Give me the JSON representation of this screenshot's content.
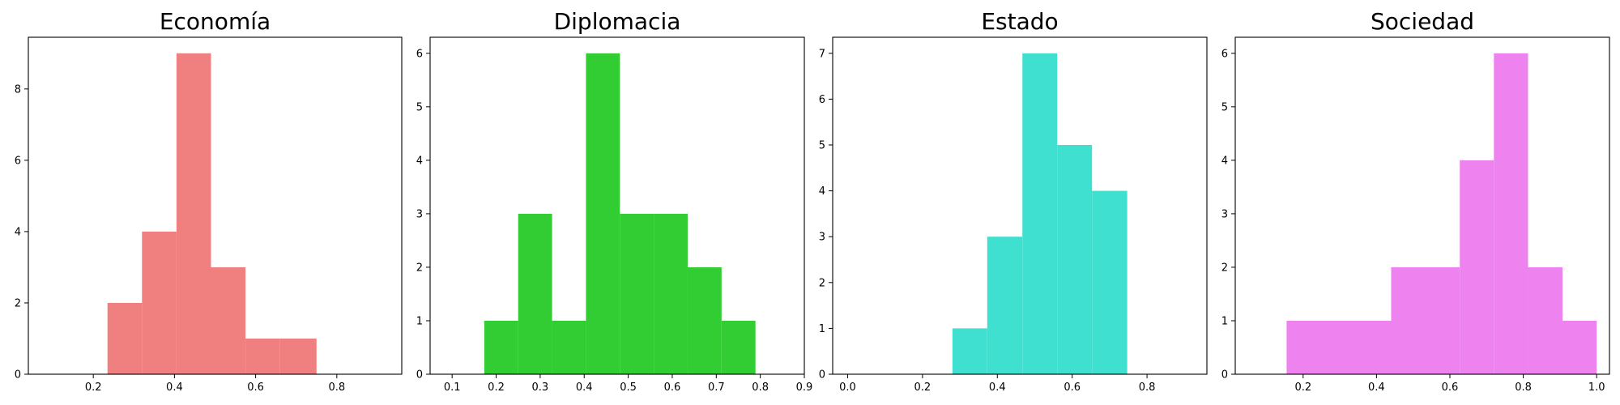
{
  "chart_data": [
    {
      "type": "histogram",
      "title": "Economía",
      "color": "#F08080",
      "xlim": [
        0.04,
        0.96
      ],
      "ylim": [
        0,
        9.45
      ],
      "xticks": [
        "0.2",
        "0.4",
        "0.6",
        "0.8"
      ],
      "yticks": [
        "0",
        "2",
        "4",
        "6",
        "8"
      ],
      "bins": [
        {
          "x0": 0.235,
          "x1": 0.32,
          "count": 2
        },
        {
          "x0": 0.32,
          "x1": 0.405,
          "count": 4
        },
        {
          "x0": 0.405,
          "x1": 0.49,
          "count": 9
        },
        {
          "x0": 0.49,
          "x1": 0.575,
          "count": 3
        },
        {
          "x0": 0.575,
          "x1": 0.66,
          "count": 1
        },
        {
          "x0": 0.66,
          "x1": 0.75,
          "count": 1
        }
      ]
    },
    {
      "type": "histogram",
      "title": "Diplomacia",
      "color": "#32CD32",
      "xlim": [
        0.05,
        0.9
      ],
      "ylim": [
        0,
        6.3
      ],
      "xticks": [
        "0.1",
        "0.2",
        "0.3",
        "0.4",
        "0.5",
        "0.6",
        "0.7",
        "0.8",
        "0.9"
      ],
      "yticks": [
        "0",
        "1",
        "2",
        "3",
        "4",
        "5",
        "6"
      ],
      "bins": [
        {
          "x0": 0.173,
          "x1": 0.25,
          "count": 1
        },
        {
          "x0": 0.25,
          "x1": 0.327,
          "count": 3
        },
        {
          "x0": 0.327,
          "x1": 0.404,
          "count": 1
        },
        {
          "x0": 0.404,
          "x1": 0.481,
          "count": 6
        },
        {
          "x0": 0.481,
          "x1": 0.558,
          "count": 3
        },
        {
          "x0": 0.558,
          "x1": 0.635,
          "count": 3
        },
        {
          "x0": 0.635,
          "x1": 0.712,
          "count": 2
        },
        {
          "x0": 0.712,
          "x1": 0.789,
          "count": 1
        }
      ]
    },
    {
      "type": "histogram",
      "title": "Estado",
      "color": "#40E0D0",
      "xlim": [
        -0.04,
        0.96
      ],
      "ylim": [
        0,
        7.35
      ],
      "xticks": [
        "0.0",
        "0.2",
        "0.4",
        "0.6",
        "0.8"
      ],
      "yticks": [
        "0",
        "1",
        "2",
        "3",
        "4",
        "5",
        "6",
        "7"
      ],
      "bins": [
        {
          "x0": 0.28,
          "x1": 0.373,
          "count": 1
        },
        {
          "x0": 0.373,
          "x1": 0.467,
          "count": 3
        },
        {
          "x0": 0.467,
          "x1": 0.56,
          "count": 7
        },
        {
          "x0": 0.56,
          "x1": 0.653,
          "count": 5
        },
        {
          "x0": 0.653,
          "x1": 0.747,
          "count": 4
        }
      ]
    },
    {
      "type": "histogram",
      "title": "Sociedad",
      "color": "#EE82EE",
      "xlim": [
        0.015,
        1.035
      ],
      "ylim": [
        0,
        6.3
      ],
      "xticks": [
        "0.2",
        "0.4",
        "0.6",
        "0.8",
        "1.0"
      ],
      "yticks": [
        "0",
        "1",
        "2",
        "3",
        "4",
        "5",
        "6"
      ],
      "bins": [
        {
          "x0": 0.155,
          "x1": 0.44,
          "count": 1
        },
        {
          "x0": 0.44,
          "x1": 0.627,
          "count": 2
        },
        {
          "x0": 0.627,
          "x1": 0.72,
          "count": 4
        },
        {
          "x0": 0.72,
          "x1": 0.813,
          "count": 6
        },
        {
          "x0": 0.813,
          "x1": 0.907,
          "count": 2
        },
        {
          "x0": 0.907,
          "x1": 1.0,
          "count": 1
        }
      ]
    }
  ]
}
